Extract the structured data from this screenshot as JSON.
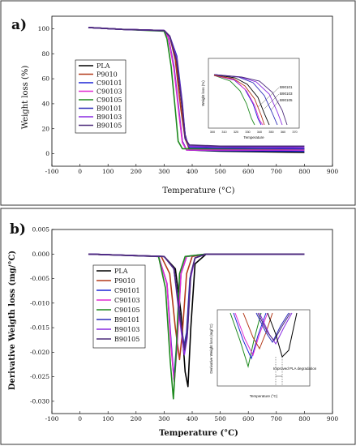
{
  "colors": {
    "PLA": "#000000",
    "P9010": "#b33a1a",
    "C90101": "#1c25d6",
    "C90103": "#e02bd0",
    "C90105": "#1e8a1e",
    "B90101": "#2b2bb8",
    "B90103": "#8a2be2",
    "B90105": "#4b2a7a"
  },
  "chart_data": [
    {
      "panel_label": "a)",
      "type": "line",
      "xlabel": "Temperature (°C)",
      "ylabel": "Weight loss (%)",
      "xlim": [
        -100,
        900
      ],
      "ylim": [
        -10,
        110
      ],
      "xticks": [
        -100,
        0,
        100,
        200,
        300,
        400,
        500,
        600,
        700,
        800,
        900
      ],
      "yticks": [
        0,
        20,
        40,
        60,
        80,
        100
      ],
      "legend_position": "left",
      "series": [
        {
          "name": "PLA",
          "x": [
            30,
            150,
            300,
            320,
            340,
            360,
            375,
            390,
            500,
            800
          ],
          "y": [
            101,
            99.5,
            98.5,
            94,
            80,
            45,
            15,
            3,
            2,
            1
          ]
        },
        {
          "name": "P9010",
          "x": [
            30,
            150,
            300,
            320,
            340,
            360,
            375,
            390,
            500,
            800
          ],
          "y": [
            101,
            99.5,
            98.5,
            94,
            75,
            35,
            12,
            4,
            3.5,
            3
          ]
        },
        {
          "name": "C90101",
          "x": [
            30,
            150,
            300,
            315,
            335,
            355,
            365,
            380,
            500,
            800
          ],
          "y": [
            101,
            99.5,
            98.5,
            93,
            70,
            30,
            10,
            3,
            2.5,
            2
          ]
        },
        {
          "name": "C90103",
          "x": [
            30,
            150,
            300,
            315,
            335,
            355,
            365,
            380,
            500,
            800
          ],
          "y": [
            101,
            99.5,
            98.5,
            93,
            68,
            28,
            9,
            3,
            3,
            3
          ]
        },
        {
          "name": "C90105",
          "x": [
            30,
            150,
            300,
            310,
            325,
            340,
            350,
            365,
            500,
            800
          ],
          "y": [
            101,
            99.5,
            98,
            92,
            70,
            35,
            10,
            4,
            4,
            4
          ]
        },
        {
          "name": "B90101",
          "x": [
            30,
            150,
            300,
            320,
            345,
            365,
            375,
            390,
            500,
            800
          ],
          "y": [
            101,
            99.5,
            98.5,
            94,
            78,
            40,
            14,
            5,
            4.5,
            4
          ]
        },
        {
          "name": "B90103",
          "x": [
            30,
            150,
            300,
            320,
            345,
            365,
            375,
            390,
            500,
            800
          ],
          "y": [
            101,
            99.5,
            98.5,
            94,
            76,
            38,
            13,
            6,
            5.5,
            5
          ]
        },
        {
          "name": "B90105",
          "x": [
            30,
            150,
            300,
            320,
            345,
            365,
            375,
            390,
            500,
            800
          ],
          "y": [
            101,
            99.5,
            98.5,
            94,
            74,
            36,
            12,
            7,
            6,
            6
          ]
        }
      ],
      "inset": {
        "xlabel": "Temperature",
        "ylabel": "Weight loss (%)",
        "xticks": [
          300,
          310,
          320,
          330,
          340,
          350,
          360,
          370
        ],
        "annotations": [
          "B90101",
          "B90103",
          "B90105"
        ]
      }
    },
    {
      "panel_label": "b)",
      "type": "line",
      "xlabel": "Temperature (°C)",
      "ylabel": "Derivative Weigth loss (mg/°C)",
      "xlim": [
        -100,
        900
      ],
      "ylim": [
        -0.0325,
        0.005
      ],
      "xticks": [
        -100,
        0,
        100,
        200,
        300,
        400,
        500,
        600,
        700,
        800,
        900
      ],
      "yticks": [
        0.005,
        0.0,
        -0.005,
        -0.01,
        -0.015,
        -0.02,
        -0.025,
        -0.03
      ],
      "ytick_labels": [
        "0.005",
        "0.000",
        "-0.005",
        "-0.010",
        "-0.015",
        "-0.020",
        "-0.025",
        "-0.030"
      ],
      "legend_position": "left",
      "series": [
        {
          "name": "PLA",
          "x": [
            30,
            300,
            340,
            360,
            375,
            385,
            395,
            410,
            450,
            800
          ],
          "y": [
            0,
            -0.0005,
            -0.003,
            -0.012,
            -0.024,
            -0.027,
            -0.015,
            -0.002,
            0,
            0
          ]
        },
        {
          "name": "P9010",
          "x": [
            30,
            290,
            320,
            340,
            355,
            365,
            380,
            400,
            450,
            800
          ],
          "y": [
            0,
            -0.0005,
            -0.004,
            -0.015,
            -0.0215,
            -0.016,
            -0.004,
            -0.0005,
            0,
            0
          ]
        },
        {
          "name": "C90101",
          "x": [
            30,
            280,
            310,
            325,
            335,
            345,
            360,
            380,
            450,
            800
          ],
          "y": [
            0,
            -0.0005,
            -0.006,
            -0.018,
            -0.0255,
            -0.018,
            -0.004,
            -0.0005,
            0,
            0
          ]
        },
        {
          "name": "C90103",
          "x": [
            30,
            280,
            310,
            325,
            336,
            346,
            360,
            380,
            450,
            800
          ],
          "y": [
            0,
            -0.0005,
            -0.006,
            -0.019,
            -0.026,
            -0.019,
            -0.004,
            -0.0005,
            0,
            0
          ]
        },
        {
          "name": "C90105",
          "x": [
            30,
            280,
            305,
            322,
            333,
            343,
            355,
            375,
            450,
            800
          ],
          "y": [
            0,
            -0.0005,
            -0.007,
            -0.022,
            -0.0295,
            -0.02,
            -0.004,
            -0.0005,
            0,
            0
          ]
        },
        {
          "name": "B90101",
          "x": [
            30,
            300,
            335,
            355,
            370,
            380,
            392,
            410,
            450,
            800
          ],
          "y": [
            0,
            -0.0005,
            -0.003,
            -0.012,
            -0.019,
            -0.016,
            -0.005,
            -0.0008,
            0,
            0
          ]
        },
        {
          "name": "B90103",
          "x": [
            30,
            300,
            335,
            355,
            372,
            382,
            394,
            410,
            450,
            800
          ],
          "y": [
            0,
            -0.0005,
            -0.003,
            -0.013,
            -0.0205,
            -0.017,
            -0.005,
            -0.0008,
            0,
            0
          ]
        },
        {
          "name": "B90105",
          "x": [
            30,
            300,
            335,
            355,
            373,
            383,
            395,
            410,
            450,
            800
          ],
          "y": [
            0,
            -0.0005,
            -0.003,
            -0.012,
            -0.0195,
            -0.016,
            -0.004,
            -0.0008,
            0,
            0
          ]
        }
      ],
      "inset": {
        "xlabel": "Temperature (°C)",
        "ylabel": "Derivative Weight loss (mg/°C)",
        "annotations": [
          "Improved PLA degradation"
        ]
      }
    }
  ]
}
